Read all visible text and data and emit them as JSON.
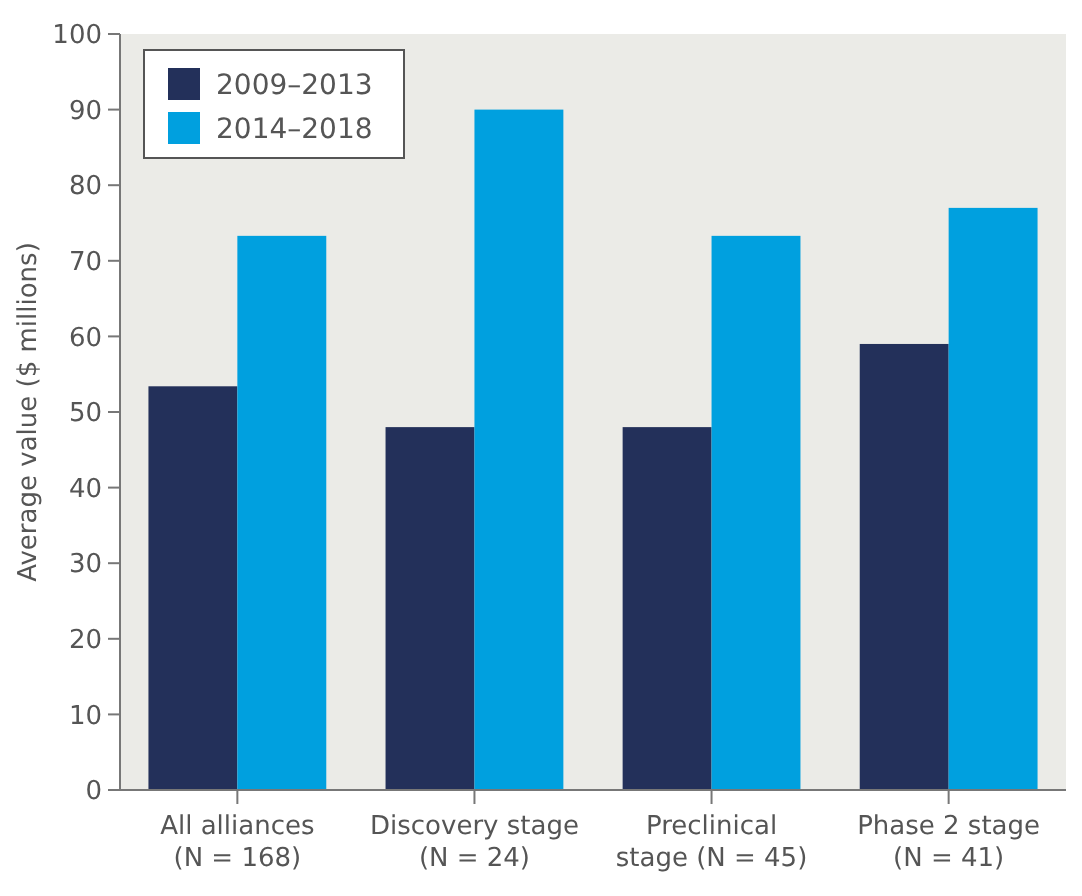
{
  "chart_data": {
    "type": "bar",
    "ylabel": "Average value ($ millions)",
    "categories": [
      "All alliances\n(N = 168)",
      "Discovery stage\n(N = 24)",
      "Preclinical\nstage (N = 45)",
      "Phase 2 stage\n(N = 41)"
    ],
    "series": [
      {
        "name": "2009–2013",
        "color": "#23305a",
        "values": [
          53.4,
          48,
          48,
          59
        ]
      },
      {
        "name": "2014–2018",
        "color": "#00a0df",
        "values": [
          73.3,
          90,
          73.3,
          77
        ]
      }
    ],
    "ylim": [
      0,
      100
    ],
    "yticks": [
      0,
      10,
      20,
      30,
      40,
      50,
      60,
      70,
      80,
      90,
      100
    ],
    "grid": false,
    "legend": "top left"
  }
}
